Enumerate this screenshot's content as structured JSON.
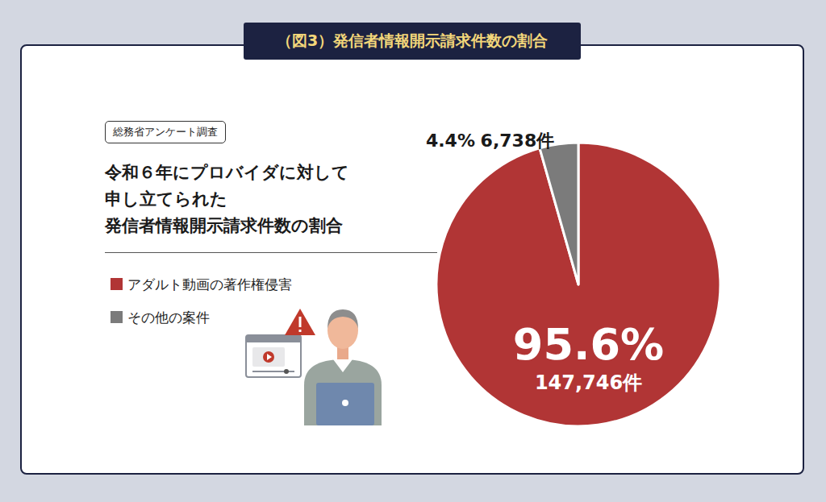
{
  "chart_data": {
    "type": "pie",
    "title": "（図3）発信者情報開示請求件数の割合",
    "badge": "総務省アンケート調査",
    "subtitle": [
      "令和６年にプロバイダに対して",
      "申し立てられた",
      "発信者情報開示請求件数の割合"
    ],
    "categories": [
      "アダルト動画の著作権侵害",
      "その他の案件"
    ],
    "values": [
      95.6,
      4.4
    ],
    "value_labels": [
      "95.6%",
      "4.4%"
    ],
    "counts": [
      147746,
      6738
    ],
    "count_labels": [
      "147,746件",
      "6,738件"
    ],
    "colors": [
      "#b13535",
      "#7b7b7b"
    ],
    "data_labels": true,
    "legend": "left"
  }
}
